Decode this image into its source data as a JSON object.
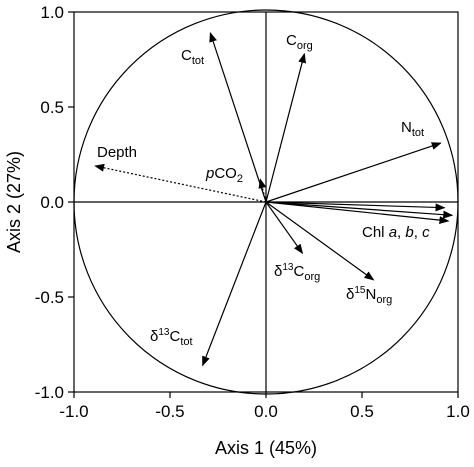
{
  "chart_data": {
    "type": "biplot",
    "xlabel": "Axis 1 (45%)",
    "ylabel": "Axis 2 (27%)",
    "xlim": [
      -1.0,
      1.0
    ],
    "ylim": [
      -1.0,
      1.0
    ],
    "xticks": [
      -1.0,
      -0.5,
      0.0,
      0.5,
      1.0
    ],
    "yticks": [
      -1.0,
      -0.5,
      0.0,
      0.5,
      1.0
    ],
    "xtick_labels": [
      "-1.0",
      "-0.5",
      "0.0",
      "0.5",
      "1.0"
    ],
    "ytick_labels": [
      "-1.0",
      "-0.5",
      "0.0",
      "0.5",
      "1.0"
    ],
    "correlation_circle": {
      "radius": 1.0
    },
    "grid": false,
    "vectors": [
      {
        "id": "ctot",
        "label_main": "C",
        "label_sub": "tot",
        "x": -0.29,
        "y": 0.89,
        "style": "solid"
      },
      {
        "id": "corg",
        "label_main": "C",
        "label_sub": "org",
        "x": 0.2,
        "y": 0.78,
        "style": "solid"
      },
      {
        "id": "ntot",
        "label_main": "N",
        "label_sub": "tot",
        "x": 0.91,
        "y": 0.31,
        "style": "solid"
      },
      {
        "id": "depth",
        "label_main": "Depth",
        "x": -0.89,
        "y": 0.19,
        "style": "dotted"
      },
      {
        "id": "pco2",
        "label_italic": "p",
        "label_main": "CO",
        "label_sub": "2",
        "x": -0.03,
        "y": 0.12,
        "style": "dotted"
      },
      {
        "id": "d13corg",
        "label_pre": "δ",
        "label_sup": "13",
        "label_main": "C",
        "label_sub": "org",
        "x": 0.19,
        "y": -0.27,
        "style": "solid"
      },
      {
        "id": "d15norg",
        "label_pre": "δ",
        "label_sup": "15",
        "label_main": "N",
        "label_sub": "org",
        "x": 0.56,
        "y": -0.41,
        "style": "solid"
      },
      {
        "id": "d13ctot",
        "label_pre": "δ",
        "label_sup": "13",
        "label_main": "C",
        "label_sub": "tot",
        "x": -0.33,
        "y": -0.86,
        "style": "solid"
      },
      {
        "id": "chla",
        "x": 0.93,
        "y": -0.03,
        "style": "solid"
      },
      {
        "id": "chlb",
        "x": 0.97,
        "y": -0.07,
        "style": "solid"
      },
      {
        "id": "chlc",
        "x": 0.95,
        "y": -0.1,
        "style": "solid"
      }
    ],
    "chl_label": {
      "main": "Chl ",
      "a": "a",
      "sep1": ", ",
      "b": "b",
      "sep2": ", ",
      "c": "c"
    }
  }
}
